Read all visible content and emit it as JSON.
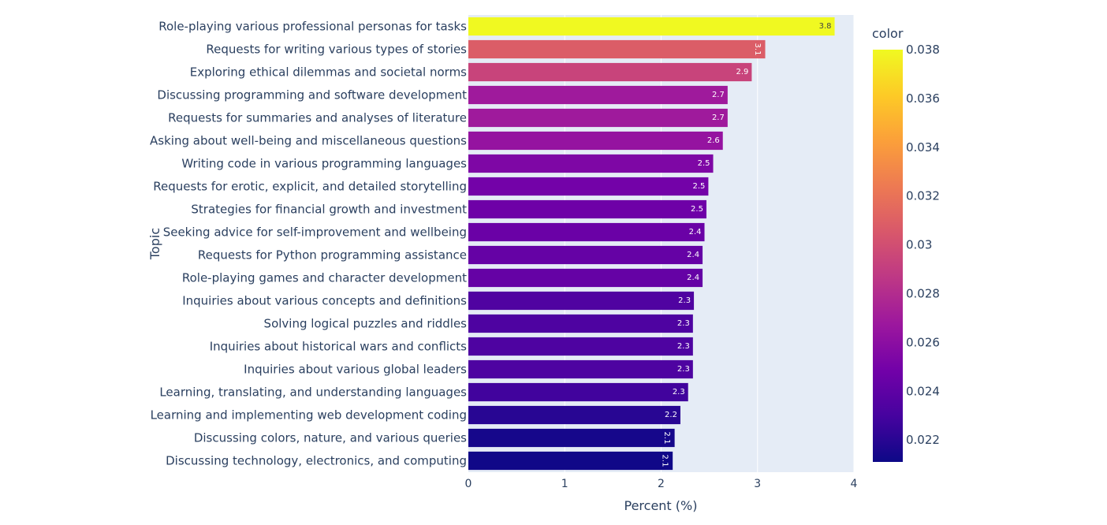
{
  "chart_data": {
    "type": "bar",
    "orientation": "horizontal",
    "categories": [
      "Role-playing various professional personas for tasks",
      "Requests for writing various types of stories",
      "Exploring ethical dilemmas and societal norms",
      "Discussing programming and software development",
      "Requests for summaries and analyses of literature",
      "Asking about well-being and miscellaneous questions",
      "Writing code in various programming languages",
      "Requests for erotic, explicit, and detailed storytelling",
      "Strategies for financial growth and investment",
      "Seeking advice for self-improvement and wellbeing",
      "Requests for Python programming assistance",
      "Role-playing games and character development",
      "Inquiries about various concepts and definitions",
      "Solving logical puzzles and riddles",
      "Inquiries about historical wars and conflicts",
      "Inquiries about various global leaders",
      "Learning, translating, and understanding languages",
      "Learning and implementing web development coding",
      "Discussing colors, nature, and various queries",
      "Discussing technology, electronics, and computing"
    ],
    "values": [
      3.8,
      3.08,
      2.94,
      2.69,
      2.69,
      2.64,
      2.54,
      2.49,
      2.47,
      2.45,
      2.43,
      2.43,
      2.34,
      2.33,
      2.33,
      2.33,
      2.28,
      2.2,
      2.14,
      2.12
    ],
    "data_labels": [
      "3.8",
      "3.1",
      "2.9",
      "2.7",
      "2.7",
      "2.6",
      "2.5",
      "2.5",
      "2.5",
      "2.4",
      "2.4",
      "2.4",
      "2.3",
      "2.3",
      "2.3",
      "2.3",
      "2.3",
      "2.2",
      "2.1",
      "2.1"
    ],
    "rotated_labels": [
      false,
      true,
      false,
      false,
      false,
      false,
      false,
      false,
      false,
      false,
      false,
      false,
      false,
      false,
      false,
      false,
      false,
      false,
      true,
      true
    ],
    "xlabel": "Percent (%)",
    "ylabel": "Topic",
    "xlim": [
      0,
      4
    ],
    "xticks": [
      0,
      1,
      2,
      3,
      4
    ],
    "grid": true,
    "colorbar": {
      "title": "color",
      "range": [
        0.0211,
        0.038
      ],
      "ticks": [
        0.022,
        0.024,
        0.026,
        0.028,
        0.03,
        0.032,
        0.034,
        0.036,
        0.038
      ],
      "tick_labels": [
        "0.022",
        "0.024",
        "0.026",
        "0.028",
        "0.03",
        "0.032",
        "0.034",
        "0.036",
        "0.038"
      ],
      "colorscale": [
        "#0d0887",
        "#46039f",
        "#7201a8",
        "#9c179e",
        "#bd3786",
        "#d8576b",
        "#ed7953",
        "#fb9f3a",
        "#fdca26",
        "#f0f921"
      ]
    },
    "background_color": "#e5ecf6"
  }
}
